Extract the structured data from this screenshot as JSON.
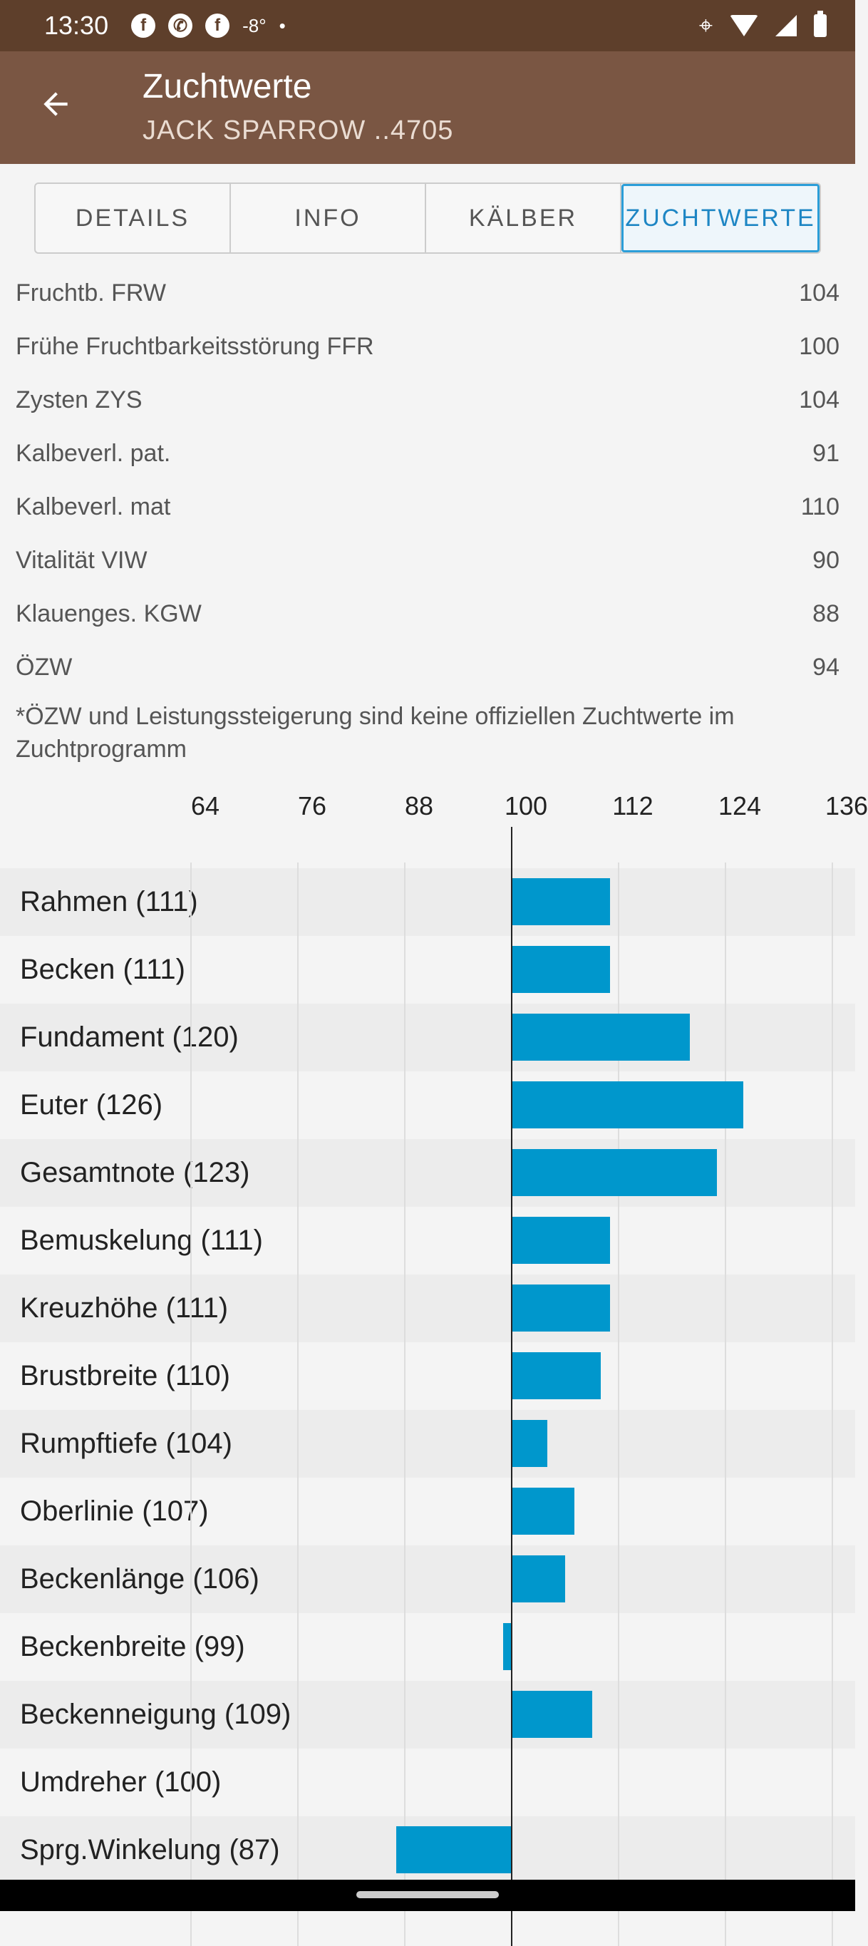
{
  "status_bar": {
    "time": "13:30",
    "temperature": "-8°",
    "dot": "•",
    "icons": [
      "facebook-icon",
      "whatsapp-icon",
      "facebook-icon",
      "location-icon",
      "wifi-icon",
      "signal-icon",
      "battery-icon"
    ]
  },
  "app_bar": {
    "title": "Zuchtwerte",
    "subtitle": "JACK SPARROW ..4705",
    "back_icon": "arrow-left-icon"
  },
  "tabs": [
    {
      "label": "DETAILS",
      "active": false
    },
    {
      "label": "INFO",
      "active": false
    },
    {
      "label": "KÄLBER",
      "active": false
    },
    {
      "label": "ZUCHTWERTE",
      "active": true
    }
  ],
  "values": [
    {
      "label": "Fruchtb. FRW",
      "value": "104"
    },
    {
      "label": "Frühe Fruchtbarkeitsstörung FFR",
      "value": "100"
    },
    {
      "label": "Zysten ZYS",
      "value": "104"
    },
    {
      "label": "Kalbeverl. pat.",
      "value": "91"
    },
    {
      "label": "Kalbeverl. mat",
      "value": "110"
    },
    {
      "label": "Vitalität VIW",
      "value": "90"
    },
    {
      "label": "Klauenges. KGW",
      "value": "88"
    },
    {
      "label": "ÖZW",
      "value": "94"
    }
  ],
  "note": "*ÖZW und Leistungssteigerung sind keine offiziellen Zuchtwerte im Zuchtprogramm",
  "colors": {
    "status_bar": "#5e3f2b",
    "app_bar": "#7a5643",
    "accent": "#2b9ed8",
    "bar": "#0097cc"
  },
  "chart_data": {
    "type": "bar",
    "orientation": "horizontal",
    "baseline": 100,
    "xlim": [
      64,
      136
    ],
    "ticks": [
      "64",
      "76",
      "88",
      "100",
      "112",
      "124",
      "136"
    ],
    "categories": [
      "Rahmen (111)",
      "Becken (111)",
      "Fundament (120)",
      "Euter (126)",
      "Gesamtnote (123)",
      "Bemuskelung (111)",
      "Kreuzhöhe (111)",
      "Brustbreite (110)",
      "Rumpftiefe (104)",
      "Oberlinie (107)",
      "Beckenlänge (106)",
      "Beckenbreite (99)",
      "Beckenneigung (109)",
      "Umdreher (100)",
      "Sprg.Winkelung (87)"
    ],
    "values": [
      111,
      111,
      120,
      126,
      123,
      111,
      111,
      110,
      104,
      107,
      106,
      99,
      109,
      100,
      87
    ]
  }
}
